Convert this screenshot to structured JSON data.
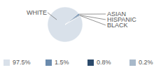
{
  "chart_data": {
    "type": "pie",
    "categories": [
      "WHITE",
      "ASIAN",
      "HISPANIC",
      "BLACK"
    ],
    "values": [
      97.5,
      1.5,
      0.8,
      0.2
    ],
    "value_labels": [
      "97.5%",
      "1.5%",
      "0.8%",
      "0.2%"
    ],
    "colors": [
      "#d9e1ea",
      "#6b8bad",
      "#2c4a6b",
      "#a8b9ca"
    ],
    "legend": "bottom"
  }
}
